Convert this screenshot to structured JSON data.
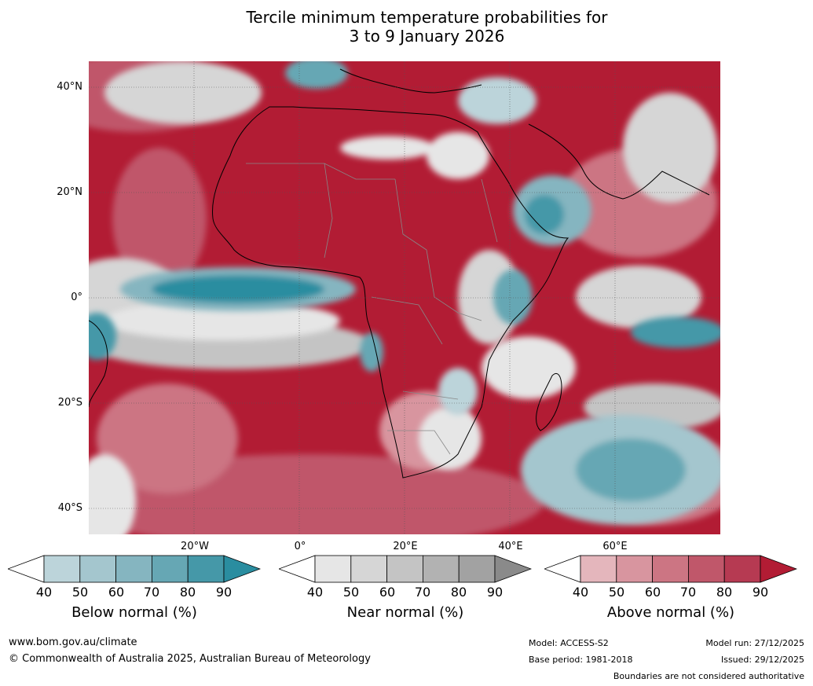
{
  "title_line1": "Tercile minimum temperature probabilities for",
  "title_line2": "3 to 9 January 2026",
  "lat_labels": [
    "40°N",
    "20°N",
    "0°",
    "20°S",
    "40°S"
  ],
  "lon_labels": [
    "20°W",
    "0°",
    "20°E",
    "40°E",
    "60°E"
  ],
  "colorbars": [
    {
      "label": "Below normal (%)",
      "ticks": [
        "40",
        "50",
        "60",
        "70",
        "80",
        "90"
      ],
      "colors": [
        "#ffffff",
        "#bcd4da",
        "#a4c6ce",
        "#85b5c0",
        "#66a7b4",
        "#4598a8",
        "#2a8da0"
      ]
    },
    {
      "label": "Near normal (%)",
      "ticks": [
        "40",
        "50",
        "60",
        "70",
        "80",
        "90"
      ],
      "colors": [
        "#ffffff",
        "#e6e6e6",
        "#d6d6d6",
        "#c4c4c4",
        "#b2b2b2",
        "#a2a2a2",
        "#8a8a8a"
      ]
    },
    {
      "label": "Above normal (%)",
      "ticks": [
        "40",
        "50",
        "60",
        "70",
        "80",
        "90"
      ],
      "colors": [
        "#ffffff",
        "#e4b6bc",
        "#d8959f",
        "#cc7583",
        "#c0576a",
        "#b63a52",
        "#b21c34"
      ]
    }
  ],
  "footer": {
    "website": "www.bom.gov.au/climate",
    "copyright": "© Commonwealth of Australia 2025, Australian Bureau of Meteorology",
    "model": "Model: ACCESS-S2",
    "base_period": "Base period: 1981-2018",
    "model_run": "Model run: 27/12/2025",
    "issued": "Issued: 29/12/2025",
    "disclaimer": "Boundaries are not considered authoritative"
  }
}
